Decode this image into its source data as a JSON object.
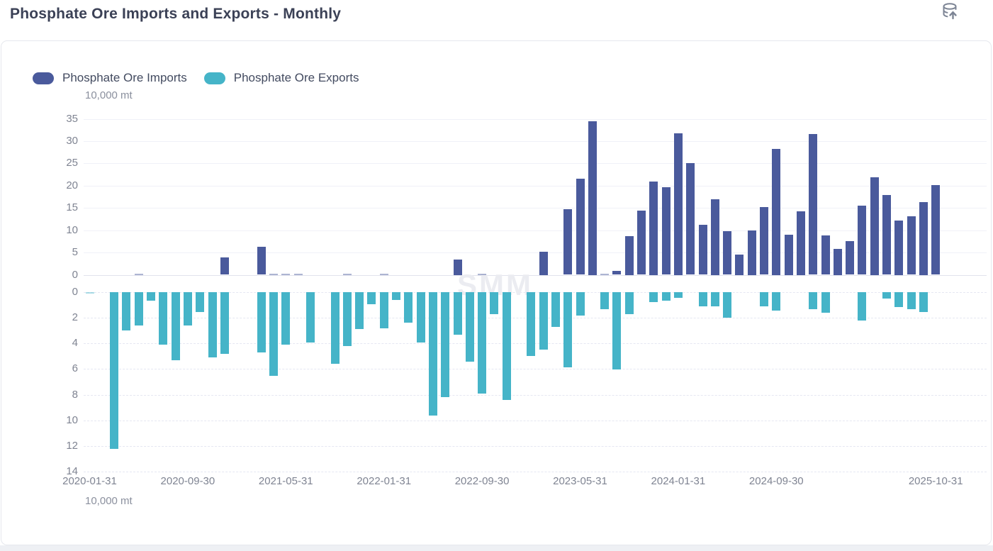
{
  "header": {
    "title": "Phosphate Ore Imports and Exports - Monthly",
    "export_icon": "database-upload-icon"
  },
  "legend": [
    {
      "label": "Phosphate Ore Imports",
      "color": "#4a5a9c"
    },
    {
      "label": "Phosphate Ore Exports",
      "color": "#45b4c8"
    }
  ],
  "chart_data": {
    "type": "bar",
    "title": "Phosphate Ore Imports and Exports - Monthly",
    "unit_top": "10,000 mt",
    "unit_bottom": "10,000 mt",
    "watermark": "SMM",
    "legend_position": "top-left",
    "grid": "on",
    "y_top": {
      "ticks": [
        0,
        5,
        10,
        15,
        20,
        25,
        30,
        35
      ],
      "max": 35,
      "label": "10,000 mt"
    },
    "y_bottom": {
      "ticks": [
        0,
        2,
        4,
        6,
        8,
        10,
        12,
        14
      ],
      "max": 14,
      "inverted": true,
      "label": "10,000 mt"
    },
    "x_tick_labels": [
      "2020-01-31",
      "2020-09-30",
      "2021-05-31",
      "2022-01-31",
      "2022-09-30",
      "2023-05-31",
      "2024-01-31",
      "2024-09-30",
      "2025-10-31"
    ],
    "x_tick_month_indices": [
      0,
      8,
      16,
      24,
      32,
      40,
      48,
      56,
      69
    ],
    "categories": [
      "2020-01-31",
      "2020-02-29",
      "2020-03-31",
      "2020-04-30",
      "2020-05-31",
      "2020-06-30",
      "2020-07-31",
      "2020-08-31",
      "2020-09-30",
      "2020-10-31",
      "2020-11-30",
      "2020-12-31",
      "2021-01-31",
      "2021-02-28",
      "2021-03-31",
      "2021-04-30",
      "2021-05-31",
      "2021-06-30",
      "2021-07-31",
      "2021-08-31",
      "2021-09-30",
      "2021-10-31",
      "2021-11-30",
      "2021-12-31",
      "2022-01-31",
      "2022-02-28",
      "2022-03-31",
      "2022-04-30",
      "2022-05-31",
      "2022-06-30",
      "2022-07-31",
      "2022-08-31",
      "2022-09-30",
      "2022-10-31",
      "2022-11-30",
      "2022-12-31",
      "2023-01-31",
      "2023-02-28",
      "2023-03-31",
      "2023-04-30",
      "2023-05-31",
      "2023-06-30",
      "2023-07-31",
      "2023-08-31",
      "2023-09-30",
      "2023-10-31",
      "2023-11-30",
      "2023-12-31",
      "2024-01-31",
      "2024-02-29",
      "2024-03-31",
      "2024-04-30",
      "2024-05-31",
      "2024-06-30",
      "2024-07-31",
      "2024-08-31",
      "2024-09-30",
      "2024-10-31",
      "2024-11-30",
      "2024-12-31",
      "2025-01-31",
      "2025-02-28",
      "2025-03-31",
      "2025-04-30",
      "2025-05-31",
      "2025-06-30",
      "2025-07-31",
      "2025-08-31",
      "2025-09-30",
      "2025-10-31"
    ],
    "series": [
      {
        "name": "Phosphate Ore Imports",
        "axis": "top",
        "color": "#4a5a9c",
        "values": [
          0,
          0,
          0,
          0,
          0.1,
          0,
          0,
          0,
          0,
          0,
          0,
          3.9,
          0,
          0,
          6.3,
          0.3,
          0.15,
          0.1,
          0,
          0,
          0,
          0.15,
          0,
          0,
          0.2,
          0,
          0,
          0,
          0,
          0,
          3.4,
          0,
          0.2,
          0,
          0,
          0,
          0,
          5.2,
          0,
          14.7,
          21.5,
          34.5,
          0.25,
          0.8,
          8.7,
          14.4,
          21,
          19.6,
          31.7,
          25,
          11.2,
          17,
          9.8,
          4.5,
          10,
          15.2,
          28.2,
          9,
          14.3,
          31.6,
          8.8,
          5.8,
          7.5,
          15.5,
          21.9,
          17.9,
          12.1,
          13.1,
          16.3,
          20.1
        ]
      },
      {
        "name": "Phosphate Ore Exports",
        "axis": "bottom",
        "color": "#45b4c8",
        "values": [
          0.1,
          0,
          12.2,
          3,
          2.6,
          0.65,
          4.1,
          5.3,
          2.6,
          1.55,
          5.1,
          4.8,
          0,
          0,
          4.7,
          6.5,
          4.1,
          0,
          3.9,
          0,
          5.6,
          4.2,
          2.85,
          0.95,
          2.8,
          0.6,
          2.4,
          3.95,
          9.6,
          8.2,
          3.3,
          5.4,
          7.9,
          1.7,
          8.4,
          0,
          5,
          4.5,
          2.7,
          5.85,
          1.8,
          0,
          1.3,
          6.05,
          1.7,
          0,
          0.75,
          0.65,
          0.45,
          0,
          1.1,
          1.1,
          2,
          0,
          0,
          1.1,
          1.45,
          0,
          0,
          1.35,
          1.6,
          0,
          0,
          2.2,
          0,
          0.5,
          1.15,
          1.3,
          1.55,
          0
        ]
      }
    ]
  }
}
